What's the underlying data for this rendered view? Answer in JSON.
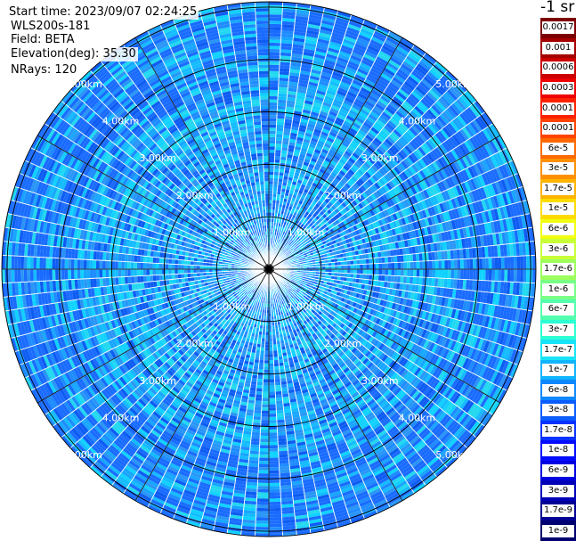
{
  "info": {
    "start_time": "Start time: 2023/09/07 02:24:25",
    "instrument": "WLS200s-181",
    "field": "Field: BETA",
    "elevation": "Elevation(deg): 35.30",
    "nrays": "NRays: 120"
  },
  "chart_data": {
    "type": "heatmap",
    "projection": "polar (PPI scan)",
    "field": "BETA",
    "elevation_deg": 35.3,
    "n_rays": 120,
    "range_rings_km": [
      1,
      2,
      3,
      4,
      5
    ],
    "range_ring_labels": [
      "1.00km",
      "2.00km",
      "3.00km",
      "4.00km",
      "5.00km"
    ],
    "max_range_km": 5.1,
    "spokes_deg": [
      0,
      30,
      60,
      90,
      120,
      150,
      180,
      210,
      240,
      270,
      300,
      330
    ],
    "dominant_value_range": [
      "1e-8",
      "1.7e-7"
    ],
    "colorbar": {
      "title": "-1 sr",
      "ticks": [
        "0.0017",
        "0.001",
        "0.0006",
        "0.0003",
        "0.00017",
        "0.0001",
        "6e-5",
        "3e-5",
        "1.7e-5",
        "1e-5",
        "6e-6",
        "3e-6",
        "1.7e-6",
        "1e-6",
        "6e-7",
        "3e-7",
        "1.7e-7",
        "1e-7",
        "6e-8",
        "3e-8",
        "1.7e-8",
        "1e-8",
        "6e-9",
        "3e-9",
        "1.7e-9",
        "1e-9"
      ],
      "colors": [
        "#7d0000",
        "#a50000",
        "#cc0000",
        "#ee0000",
        "#ff2200",
        "#ff4400",
        "#ff6a00",
        "#ff9000",
        "#ffb400",
        "#ffdc00",
        "#f0ff10",
        "#c8ff38",
        "#9cff5e",
        "#78ff88",
        "#52ffae",
        "#2cffd4",
        "#18e4f8",
        "#10b4ff",
        "#0e88ff",
        "#0a5cff",
        "#0832ff",
        "#040cff",
        "#0000e0",
        "#0000b8",
        "#000094",
        "#000070"
      ]
    }
  }
}
